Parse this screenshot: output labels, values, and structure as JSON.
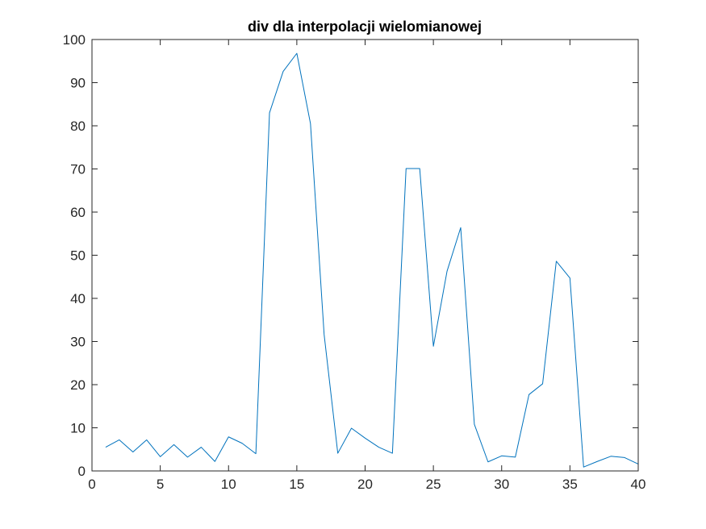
{
  "chart_data": {
    "type": "line",
    "title": "div dla interpolacji wielomianowej",
    "xlabel": "",
    "ylabel": "",
    "xlim": [
      0,
      40
    ],
    "ylim": [
      0,
      100
    ],
    "xticks": [
      0,
      5,
      10,
      15,
      20,
      25,
      30,
      35,
      40
    ],
    "yticks": [
      0,
      10,
      20,
      30,
      40,
      50,
      60,
      70,
      80,
      90,
      100
    ],
    "grid": false,
    "series": [
      {
        "color": "#0072BD",
        "x": [
          1,
          2,
          3,
          4,
          5,
          6,
          7,
          8,
          9,
          10,
          11,
          12,
          13,
          14,
          15,
          16,
          17,
          18,
          19,
          20,
          21,
          22,
          23,
          24,
          25,
          26,
          27,
          28,
          29,
          30,
          31,
          32,
          33,
          34,
          35,
          36,
          37,
          38,
          39,
          40
        ],
        "y": [
          5.5,
          7.2,
          4.4,
          7.2,
          3.3,
          6.1,
          3.2,
          5.5,
          2.2,
          7.9,
          6.4,
          4.0,
          83.0,
          92.6,
          96.8,
          80.5,
          31.6,
          4.1,
          9.9,
          7.6,
          5.5,
          4.1,
          70.1,
          70.1,
          28.9,
          46.3,
          56.4,
          10.8,
          2.1,
          3.5,
          3.2,
          17.7,
          20.2,
          48.6,
          44.7,
          0.9,
          2.2,
          3.4,
          3.1,
          1.6
        ]
      }
    ]
  }
}
